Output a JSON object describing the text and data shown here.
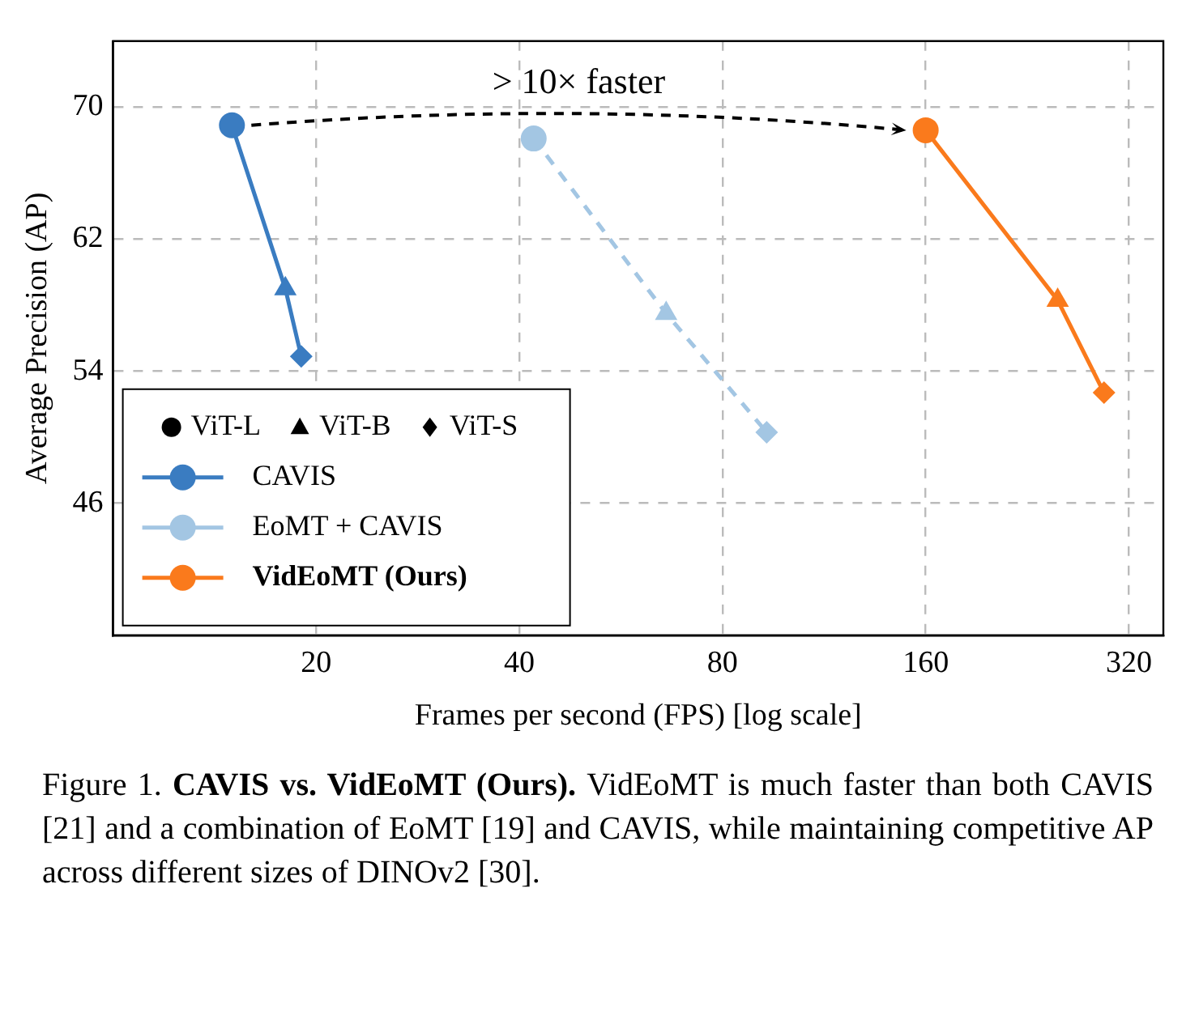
{
  "chart_data": {
    "type": "line",
    "xlabel": "Frames per second (FPS) [log scale]",
    "ylabel": "Average Precision (AP)",
    "log": "x",
    "xlim": [
      10,
      360
    ],
    "xticks": [
      20,
      40,
      80,
      160,
      320
    ],
    "ylim": [
      38,
      74
    ],
    "yticks": [
      46,
      54,
      62,
      70
    ],
    "grid": true,
    "legend": "bottom left",
    "annotations": [
      "> 10× faster",
      "Figure 1.",
      "CAVIS vs. VidEoMT (Ours).",
      "VidEoMT is much faster than both CAVIS [21] and a combination of EoMT [19] and CAVIS, while maintaining competitive AP across different sizes of DINOv2 [30]."
    ],
    "series": [
      {
        "name": "ViT-L",
        "type": "scatter",
        "marker": "circle",
        "color": "#000000"
      },
      {
        "name": "ViT-B",
        "type": "scatter",
        "marker": "triangle",
        "color": "#000000"
      },
      {
        "name": "ViT-S",
        "type": "scatter",
        "marker": "diamond",
        "color": "#000000"
      },
      {
        "name": "CAVIS",
        "marker": "circle",
        "color": "#3a7cc1",
        "line_style": "solid",
        "x": [
          15,
          18,
          19
        ],
        "values": [
          68.9,
          59.0,
          54.9
        ]
      },
      {
        "name": "EoMT + CAVIS",
        "marker": "circle",
        "color": "#a3c6e3",
        "line_style": "dashed",
        "x": [
          42,
          66,
          93
        ],
        "values": [
          68.1,
          57.5,
          50.3
        ]
      },
      {
        "name": "VidEoMT (Ours)",
        "marker": "circle",
        "color": "#fa7a1c",
        "line_style": "solid",
        "x": [
          160,
          251,
          294
        ],
        "values": [
          68.6,
          58.3,
          52.7
        ]
      }
    ]
  }
}
